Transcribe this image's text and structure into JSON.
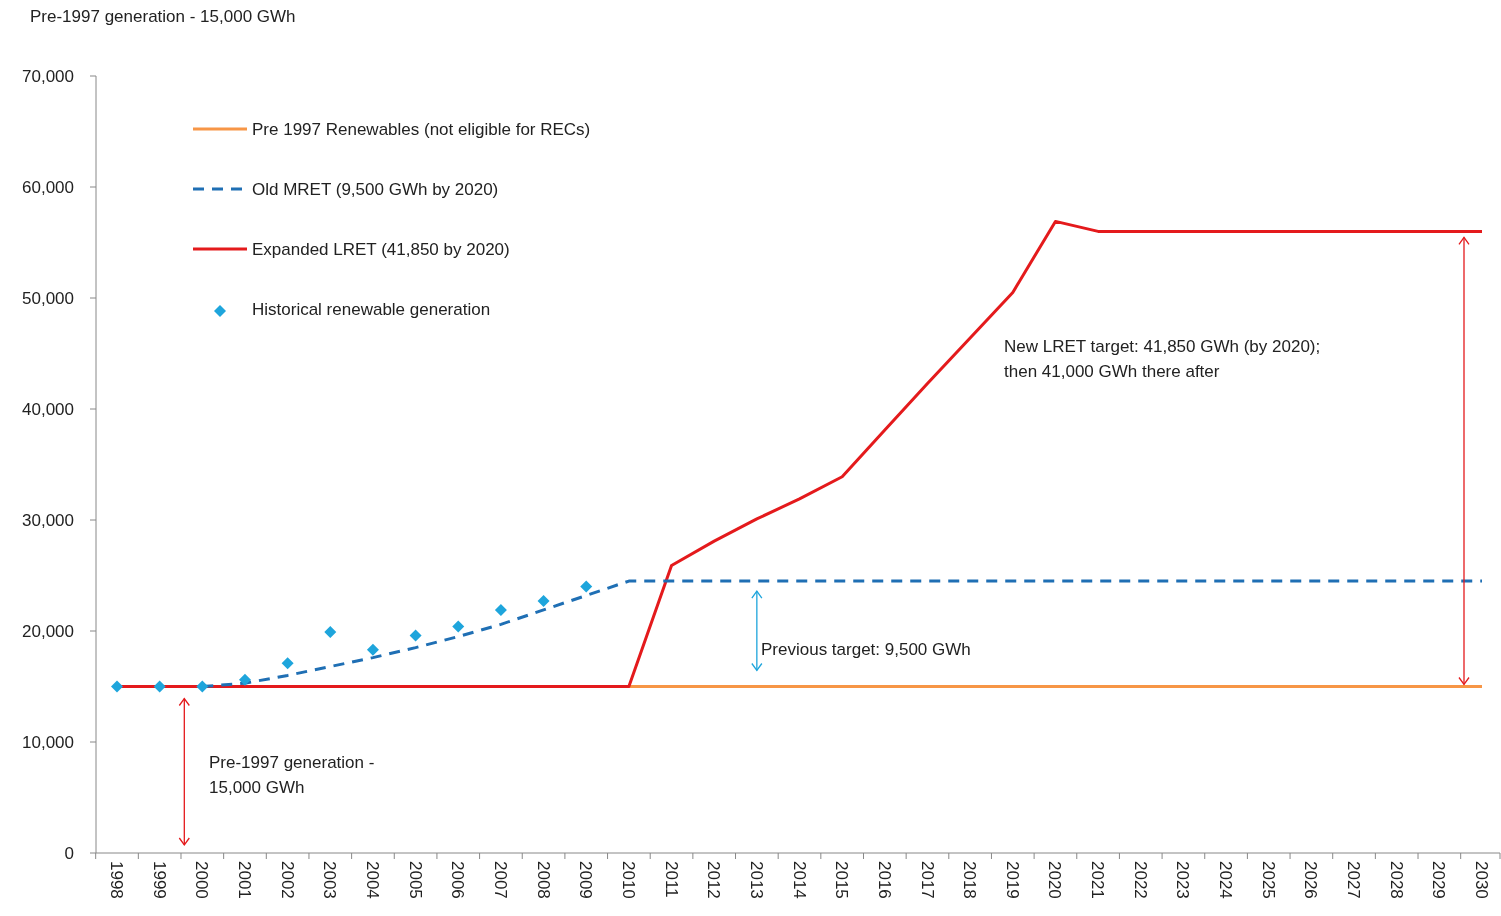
{
  "chart_data": {
    "type": "line",
    "title": "Pre-1997 generation - 15,000 GWh",
    "categories": [
      "1998",
      "1999",
      "2000",
      "2001",
      "2002",
      "2003",
      "2004",
      "2005",
      "2006",
      "2007",
      "2008",
      "2009",
      "2010",
      "2011",
      "2012",
      "2013",
      "2014",
      "2015",
      "2016",
      "2017",
      "2018",
      "2019",
      "2020",
      "2021",
      "2022",
      "2023",
      "2024",
      "2025",
      "2026",
      "2027",
      "2028",
      "2029",
      "2030"
    ],
    "series": [
      {
        "name": "Pre 1997 Renewables (not eligible for RECs)",
        "color": "#f79646",
        "line_style": "solid",
        "values": [
          null,
          null,
          null,
          null,
          null,
          null,
          null,
          null,
          null,
          null,
          null,
          null,
          15000,
          15000,
          15000,
          15000,
          15000,
          15000,
          15000,
          15000,
          15000,
          15000,
          15000,
          15000,
          15000,
          15000,
          15000,
          15000,
          15000,
          15000,
          15000,
          15000,
          15000
        ]
      },
      {
        "name": "Old MRET (9,500 GWh by 2020)",
        "color": "#1f6fb4",
        "line_style": "dashed",
        "values": [
          null,
          null,
          15000,
          15300,
          16000,
          16800,
          17600,
          18500,
          19500,
          20600,
          21900,
          23200,
          24500,
          24500,
          24500,
          24500,
          24500,
          24500,
          24500,
          24500,
          24500,
          24500,
          24500,
          24500,
          24500,
          24500,
          24500,
          24500,
          24500,
          24500,
          24500,
          24500,
          24500
        ]
      },
      {
        "name": "Expanded LRET (41,850 by 2020)",
        "color": "#e41a1c",
        "line_style": "solid",
        "values": [
          15000,
          15000,
          15000,
          15000,
          15000,
          15000,
          15000,
          15000,
          15000,
          15000,
          15000,
          15000,
          15000,
          25900,
          28100,
          30100,
          31900,
          33900,
          38100,
          42300,
          46400,
          50500,
          56900,
          56000,
          56000,
          56000,
          56000,
          56000,
          56000,
          56000,
          56000,
          56000,
          56000
        ]
      },
      {
        "name": "Historical renewable generation",
        "type": "scatter",
        "marker": "diamond",
        "color": "#1ea5dc",
        "values": [
          15000,
          15000,
          15000,
          15600,
          17100,
          19900,
          18300,
          19600,
          20400,
          21900,
          22700,
          24000,
          null,
          null,
          null,
          null,
          null,
          null,
          null,
          null,
          null,
          null,
          null,
          null,
          null,
          null,
          null,
          null,
          null,
          null,
          null,
          null,
          null
        ]
      }
    ],
    "ylim": [
      0,
      70000
    ],
    "yticks": [
      {
        "value": 0,
        "label": "0"
      },
      {
        "value": 10000,
        "label": "10,000"
      },
      {
        "value": 20000,
        "label": "20,000"
      },
      {
        "value": 30000,
        "label": "30,000"
      },
      {
        "value": 40000,
        "label": "40,000"
      },
      {
        "value": 50000,
        "label": "50,000"
      },
      {
        "value": 60000,
        "label": "60,000"
      },
      {
        "value": 70000,
        "label": "70,000"
      }
    ],
    "grid": false,
    "legend": "top left",
    "annotations": [
      "Pre-1997 generation - 15,000 GWh",
      "New LRET target: 41,850 GWh (by 2020); then 41,000 GWh there after",
      "Previous target: 9,500 GWh"
    ]
  }
}
